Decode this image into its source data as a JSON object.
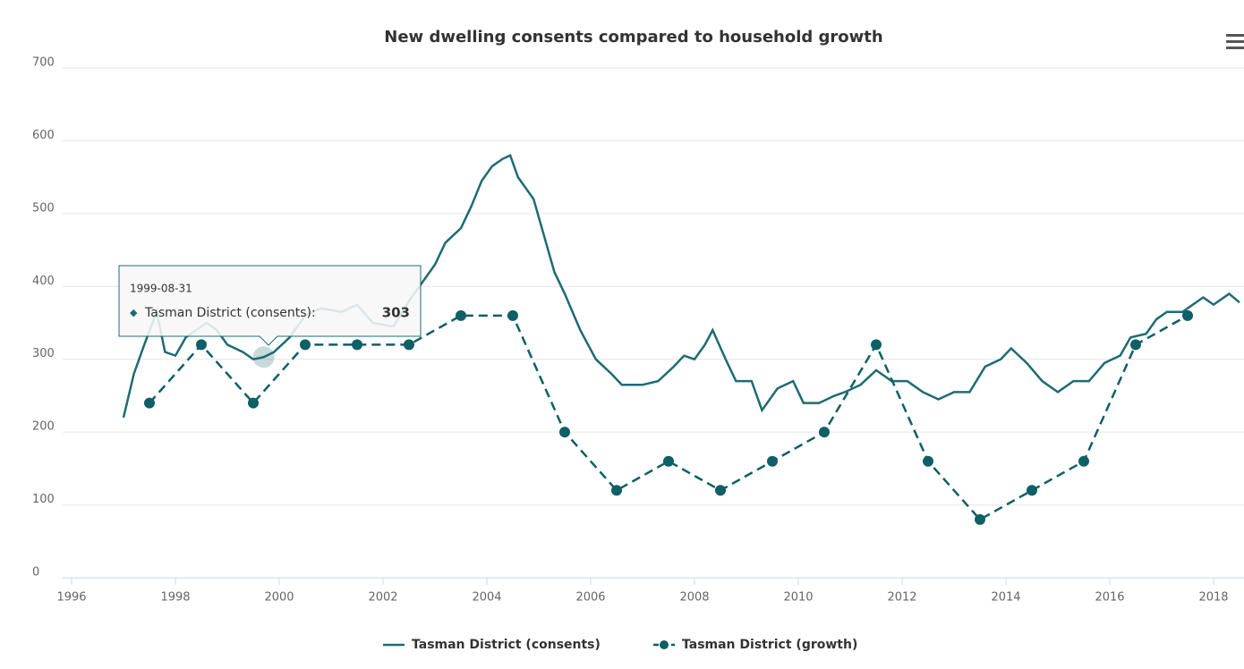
{
  "chart_data": {
    "type": "line",
    "title": "New dwelling consents compared to household growth",
    "xlim": [
      1996,
      2018.5
    ],
    "xticks": [
      1996,
      1998,
      2000,
      2002,
      2004,
      2006,
      2008,
      2010,
      2012,
      2014,
      2016,
      2018
    ],
    "ylim": [
      0,
      700
    ],
    "yticks": [
      0,
      100,
      200,
      300,
      400,
      500,
      600,
      700
    ],
    "grid": true,
    "legend": "bottom",
    "series": [
      {
        "name": "Tasman District (consents)",
        "color": "#1e6b73",
        "style": "solid",
        "x": [
          1997.0,
          1997.2,
          1997.4,
          1997.64,
          1997.8,
          1998.0,
          1998.2,
          1998.4,
          1998.6,
          1998.8,
          1999.0,
          1999.3,
          1999.5,
          1999.7,
          1999.9,
          2000.2,
          2000.5,
          2000.8,
          2001.2,
          2001.5,
          2001.8,
          2002.2,
          2002.5,
          2002.8,
          2003.0,
          2003.2,
          2003.5,
          2003.7,
          2003.9,
          2004.1,
          2004.3,
          2004.45,
          2004.6,
          2004.9,
          2005.1,
          2005.3,
          2005.5,
          2005.8,
          2006.1,
          2006.4,
          2006.6,
          2007.0,
          2007.3,
          2007.6,
          2007.8,
          2008.0,
          2008.2,
          2008.35,
          2008.6,
          2008.8,
          2009.1,
          2009.3,
          2009.6,
          2009.9,
          2010.1,
          2010.4,
          2010.7,
          2010.9,
          2011.2,
          2011.5,
          2011.8,
          2012.1,
          2012.4,
          2012.7,
          2013.0,
          2013.3,
          2013.6,
          2013.9,
          2014.1,
          2014.4,
          2014.7,
          2015.0,
          2015.3,
          2015.6,
          2015.9,
          2016.2,
          2016.4,
          2016.7,
          2016.9,
          2017.1,
          2017.4,
          2017.6,
          2017.8,
          2018.0,
          2018.3,
          2018.5
        ],
        "values": [
          220,
          280,
          320,
          365,
          310,
          305,
          330,
          340,
          350,
          340,
          320,
          310,
          300,
          303,
          310,
          330,
          360,
          370,
          365,
          375,
          350,
          345,
          380,
          410,
          430,
          460,
          480,
          510,
          545,
          565,
          575,
          580,
          550,
          520,
          470,
          420,
          390,
          340,
          300,
          280,
          265,
          265,
          270,
          290,
          305,
          300,
          320,
          340,
          300,
          270,
          270,
          230,
          260,
          270,
          240,
          240,
          250,
          255,
          265,
          285,
          270,
          270,
          255,
          245,
          255,
          255,
          290,
          300,
          315,
          295,
          270,
          255,
          270,
          270,
          295,
          305,
          330,
          335,
          355,
          365,
          365,
          375,
          385,
          375,
          390,
          378
        ]
      },
      {
        "name": "Tasman District (growth)",
        "color": "#0f5f66",
        "style": "dashed",
        "x": [
          1997.5,
          1998.5,
          1999.5,
          2000.5,
          2001.5,
          2002.5,
          2003.5,
          2004.5,
          2005.5,
          2006.5,
          2007.5,
          2008.5,
          2009.5,
          2010.5,
          2011.5,
          2012.5,
          2013.5,
          2014.5,
          2015.5,
          2016.5,
          2017.5
        ],
        "values": [
          240,
          320,
          240,
          320,
          320,
          320,
          360,
          360,
          200,
          120,
          160,
          120,
          160,
          200,
          320,
          160,
          80,
          120,
          160,
          320,
          360
        ]
      }
    ],
    "tooltip": {
      "date": "1999-08-31",
      "series": "Tasman District (consents):",
      "value": "303"
    }
  }
}
